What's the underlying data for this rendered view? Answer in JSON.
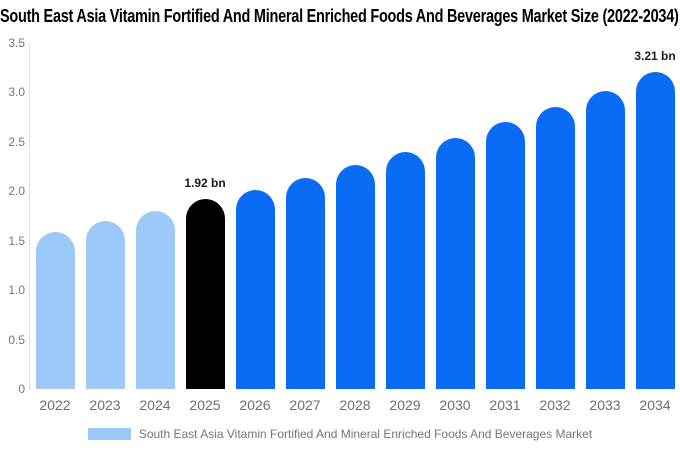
{
  "chart_data": {
    "type": "bar",
    "title": "South East Asia Vitamin Fortified And Mineral Enriched Foods And Beverages Market Size (2022-2034)",
    "categories": [
      "2022",
      "2023",
      "2024",
      "2025",
      "2026",
      "2027",
      "2028",
      "2029",
      "2030",
      "2031",
      "2032",
      "2033",
      "2034"
    ],
    "values": [
      1.59,
      1.7,
      1.8,
      1.92,
      2.01,
      2.13,
      2.27,
      2.4,
      2.54,
      2.7,
      2.85,
      3.01,
      3.21
    ],
    "value_unit": "bn",
    "ylim": [
      0,
      3.5
    ],
    "yticks": [
      3.5,
      3.0,
      2.5,
      2.0,
      1.5,
      1.0,
      0.5,
      0
    ],
    "ytick_labels": [
      "3.5",
      "3.0",
      "2.5",
      "2.0",
      "1.5",
      "1.0",
      "0.5",
      "0"
    ],
    "grid": false,
    "legend_position": "bottom",
    "legend_label": "South East Asia Vitamin Fortified And Mineral Enriched Foods And Beverages Market",
    "annotations": [
      {
        "category": "2025",
        "text": "1.92 bn"
      },
      {
        "category": "2034",
        "text": "3.21 bn"
      }
    ],
    "bar_roles": [
      "past",
      "past",
      "past",
      "current",
      "forecast",
      "forecast",
      "forecast",
      "forecast",
      "forecast",
      "forecast",
      "forecast",
      "forecast",
      "forecast"
    ],
    "colors": {
      "past": "#9DC9F8",
      "current": "#000000",
      "forecast": "#0A6BF4",
      "axis_line": "#DDDDDD",
      "tick_text": "#757575",
      "axis_text": "#6E6E6E",
      "annotation_text": "#1A1A1A",
      "title_text": "#000000",
      "legend_text": "#757575",
      "background": "#FFFFFF"
    }
  }
}
